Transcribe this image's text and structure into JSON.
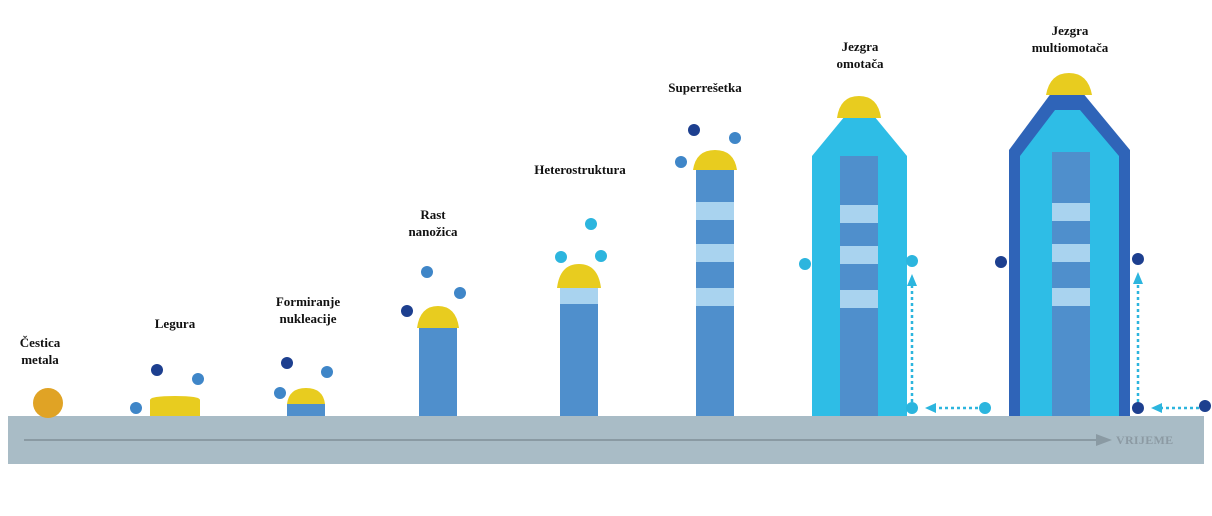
{
  "labels": {
    "metal_particle": [
      "Čestica",
      "metala"
    ],
    "alloy": [
      "Legura"
    ],
    "nucleation": [
      "Formiranje",
      "nukleacije"
    ],
    "nanowire_growth": [
      "Rast",
      "nanožica"
    ],
    "heterostructure": [
      "Heterostruktura"
    ],
    "superlattice": [
      "Superrešetka"
    ],
    "core_shell": [
      "Jezgra",
      "omotača"
    ],
    "core_multishell": [
      "Jezgra",
      "multiomotača"
    ]
  },
  "time_axis_label": "VRIJEME",
  "colors": {
    "substrate": "#a9bcc6",
    "arrow": "#8a9aa3",
    "wire": "#4f8fcc",
    "segment": "#a9d3ef",
    "catalyst": "#e8cc1f",
    "metal": "#e0a325",
    "atom_dark": "#1d3f8f",
    "atom_mid": "#3f86c8",
    "atom_light": "#2cb5de",
    "shell": "#2ebde6",
    "outer_shell": "#2f64b8"
  }
}
